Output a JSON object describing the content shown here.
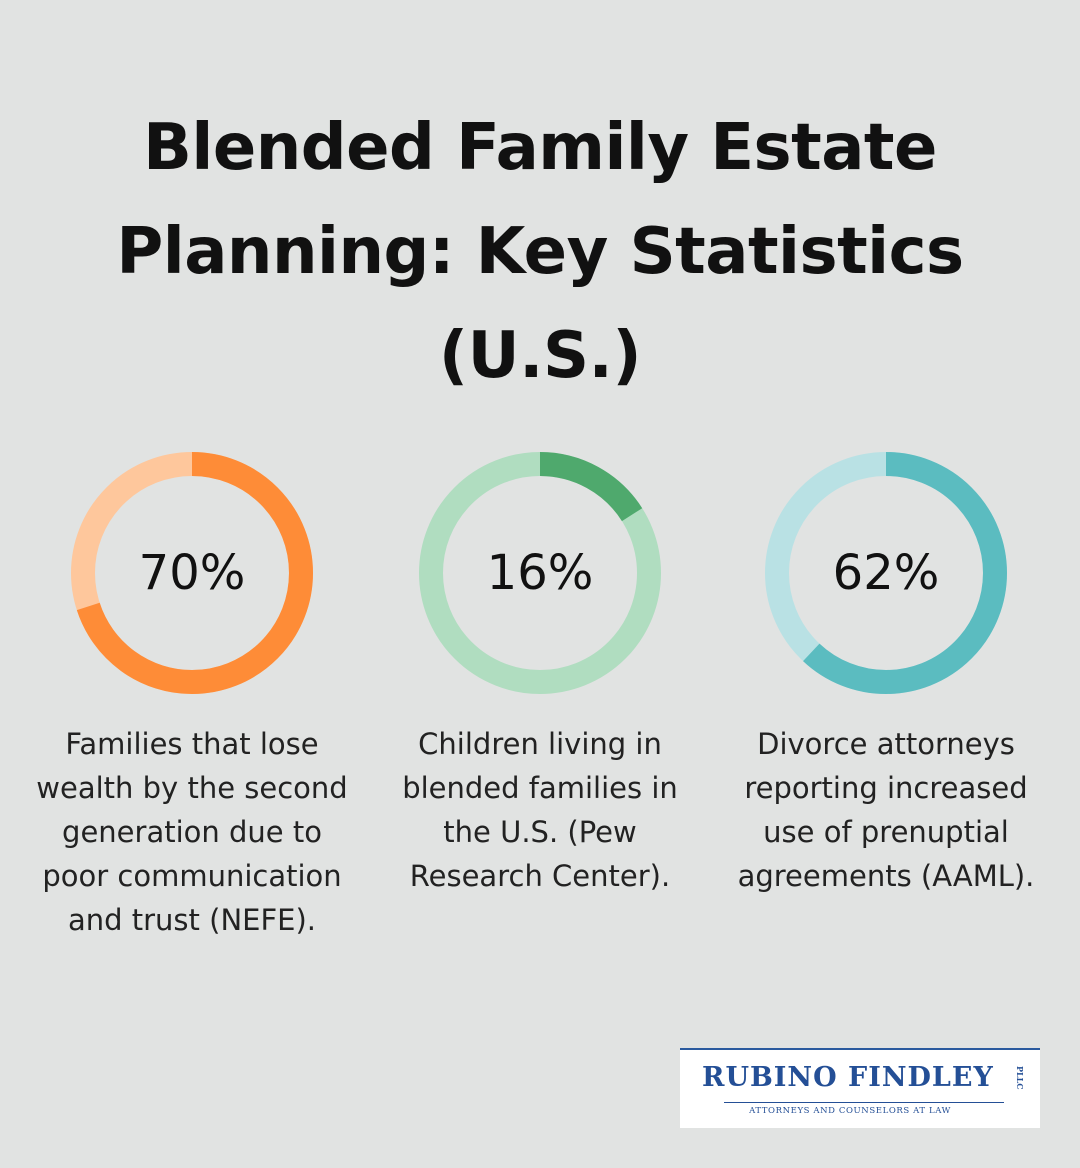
{
  "title": "Blended Family Estate Planning: Key Statistics (U.S.)",
  "stats": [
    {
      "value_label": "70%",
      "value": 70,
      "description": "Families that lose wealth by the second generation due to poor communication and trust (NEFE).",
      "color": "#fe8c37",
      "track_color": "#fec79c"
    },
    {
      "value_label": "16%",
      "value": 16,
      "description": "Children living in blended families in the U.S. (Pew Research Center).",
      "color": "#4fa96d",
      "track_color": "#b0ddc0"
    },
    {
      "value_label": "62%",
      "value": 62,
      "description": "Divorce attorneys reporting increased use of prenuptial agreements (AAML).",
      "color": "#5bbcc0",
      "track_color": "#b9e1e4"
    }
  ],
  "logo": {
    "name": "RUBINO FINDLEY",
    "suffix": "PLLC",
    "tagline": "ATTORNEYS AND COUNSELORS AT LAW",
    "color": "#244f96"
  }
}
